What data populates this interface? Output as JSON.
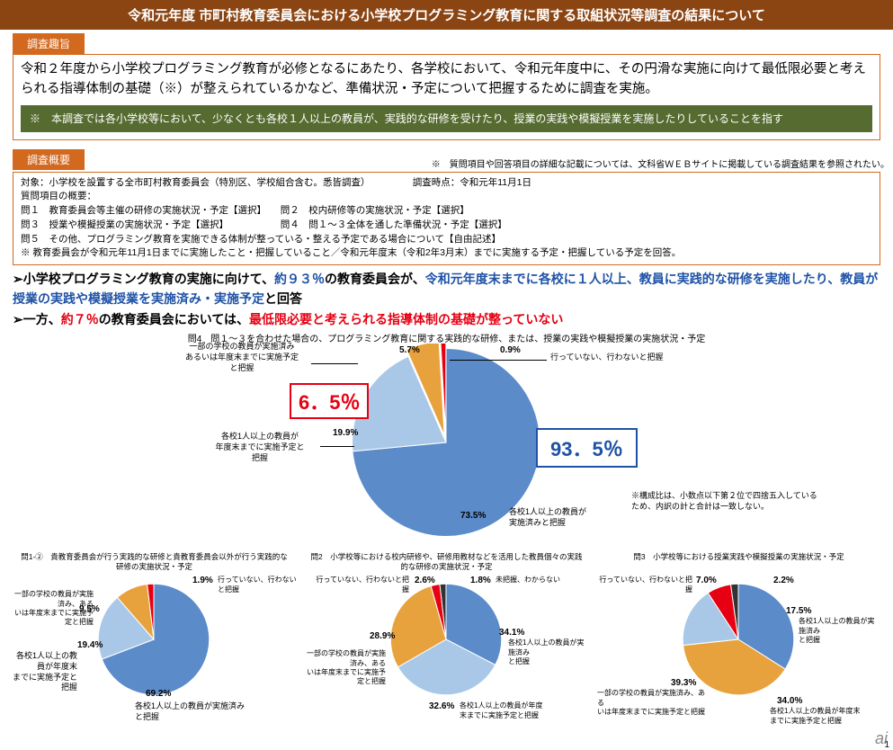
{
  "title": "令和元年度 市町村教育委員会における小学校プログラミング教育に関する取組状況等調査の結果について",
  "tab1": "調査趣旨",
  "lead": "令和２年度から小学校プログラミング教育が必修となるにあたり、各学校において、令和元年度中に、その円滑な実施に向けて最低限必要と考えられる指導体制の基礎（※）が整えられているかなど、準備状況・予定について把握するために調査を実施。",
  "note": "※　本調査では各小学校等において、少なくとも各校１人以上の教員が、実践的な研修を受けたり、授業の実践や模擬授業を実施したりしていることを指す",
  "tab2": "調査概要",
  "ref": "※　質問項目や回答項目の詳細な記載については、文科省ＷＥＢサイトに掲載している調査結果を参照されたい。",
  "ov1": "対象：小学校を設置する全市町村教育委員会（特別区、学校組合含む。悉皆調査）　　　　　調査時点：令和元年11月1日",
  "ov2": "質問項目の概要：",
  "ov3": "問１　教育委員会等主催の研修の実施状況・予定【選択】　　問２　校内研修等の実施状況・予定【選択】",
  "ov4": "問３　授業や模擬授業の実施状況・予定【選択】　　　　　　問４　問１～３全体を通した準備状況・予定【選択】",
  "ov5": "問５　その他、プログラミング教育を実施できる体制が整っている・整える予定である場合について【自由記述】",
  "ov6": "※ 教育委員会が令和元年11月1日までに実施したこと・把握していること／令和元年度末（令和2年3月末）までに実施する予定・把握している予定を回答。",
  "f1a": "➢小学校プログラミング教育の実施に向けて、",
  "f1b": "約９３％",
  "f1c": "の教育委員会が、",
  "f1d": "令和元年度末までに各校に１人以上、教員に実践的な研修を実施したり、教員が授業の実践や模擬授業を実施済み・実施予定",
  "f1e": "と回答",
  "f2a": "➢一方、",
  "f2b": "約７％",
  "f2c": "の教育委員会においては、",
  "f2d": "最低限必要と考えられる指導体制の基礎が整っていない",
  "mainChart": {
    "title": "問4　問１～３を合わせた場合の、プログラミング教育に関する実践的な研修、または、授業の実践や模擬授業の実施状況・予定",
    "segments": [
      {
        "pct": 73.5,
        "color": "#5B8BC9",
        "start": 0
      },
      {
        "pct": 19.9,
        "color": "#A9C8E8",
        "start": 264.6
      },
      {
        "pct": 5.7,
        "color": "#E8A23D",
        "start": 336.2
      },
      {
        "pct": 0.9,
        "color": "#E60012",
        "start": 356.8
      }
    ],
    "big_left": "6．5％",
    "big_right": "93．5％",
    "lbl_a": "各校1人以上の教員が\n実施済みと把握",
    "lbl_b": "各校1人以上の教員が\n年度末までに実施予定と\n把握",
    "lbl_c": "一部の学校の教員が実施済み\nあるいは年度末までに実施予定\nと把握",
    "lbl_d": "行っていない、行わないと把握",
    "p_a": "73.5%",
    "p_b": "19.9%",
    "p_c": "5.7%",
    "p_d": "0.9%",
    "foot": "※構成比は、小数点以下第２位で四捨五入している\nため、内訳の計と合計は一致しない。"
  },
  "mini1": {
    "title": "問1-②　貴教育委員会が行う実践的な研修と貴教育委員会以外が行う実践的な研修の実施状況・予定",
    "segments": [
      {
        "pct": 69.2,
        "color": "#5B8BC9",
        "start": 0
      },
      {
        "pct": 19.4,
        "color": "#A9C8E8",
        "start": 249.1
      },
      {
        "pct": 9.5,
        "color": "#E8A23D",
        "start": 319.0
      },
      {
        "pct": 1.9,
        "color": "#E60012",
        "start": 353.2
      }
    ],
    "p_main": "69.2%",
    "p_b": "19.4%",
    "p_c": "9.5%",
    "p_d": "1.9%",
    "l_main": "各校1人以上の教員が実施済み\nと把握",
    "l_b": "各校1人以上の教員が年度末\nまでに実施予定と把握",
    "l_c": "一部の学校の教員が実施済み、ある\nいは年度末までに実施予定と把握",
    "l_d": "行っていない、行わないと把握"
  },
  "mini2": {
    "title": "問2　小学校等における校内研修や、研修用教材などを活用した教員個々の実践的な研修の実施状況・予定",
    "segments": [
      {
        "pct": 32.6,
        "color": "#5B8BC9",
        "start": 0
      },
      {
        "pct": 34.1,
        "color": "#A9C8E8",
        "start": 117.4
      },
      {
        "pct": 28.9,
        "color": "#E8A23D",
        "start": 240.1
      },
      {
        "pct": 2.6,
        "color": "#E60012",
        "start": 344.2
      },
      {
        "pct": 1.8,
        "color": "#333333",
        "start": 353.5
      }
    ],
    "p_a": "32.6%",
    "p_b": "34.1%",
    "p_c": "28.9%",
    "p_d": "2.6%",
    "p_e": "1.8%",
    "l_a": "各校1人以上の教員が年度\n末までに実施予定と把握",
    "l_b": "各校1人以上の教員が実施済み\nと把握",
    "l_c": "一部の学校の教員が実施済み、ある\nいは年度末までに実施予定と把握",
    "l_d": "行っていない、行わないと把握",
    "l_e": "未把握、わからない"
  },
  "mini3": {
    "title": "問3　小学校等における授業実践や模擬授業の実施状況・予定",
    "segments": [
      {
        "pct": 34.0,
        "color": "#5B8BC9",
        "start": 0
      },
      {
        "pct": 39.3,
        "color": "#E8A23D",
        "start": 122.4
      },
      {
        "pct": 17.5,
        "color": "#A9C8E8",
        "start": 263.9
      },
      {
        "pct": 7.0,
        "color": "#E60012",
        "start": 326.9
      },
      {
        "pct": 2.2,
        "color": "#333333",
        "start": 352.1
      }
    ],
    "p_a": "34.0%",
    "p_b": "39.3%",
    "p_c": "17.5%",
    "p_d": "7.0%",
    "p_e": "2.2%",
    "l_a": "各校1人以上の教員が年度末\nまでに実施予定と把握",
    "l_b": "一部の学校の教員が実施済み、ある\nいは年度末までに実施予定と把握",
    "l_c": "各校1人以上の教員が実施済み\nと把握",
    "l_d": "行っていない、行わないと把握"
  },
  "page": "1",
  "watermark": "ai"
}
